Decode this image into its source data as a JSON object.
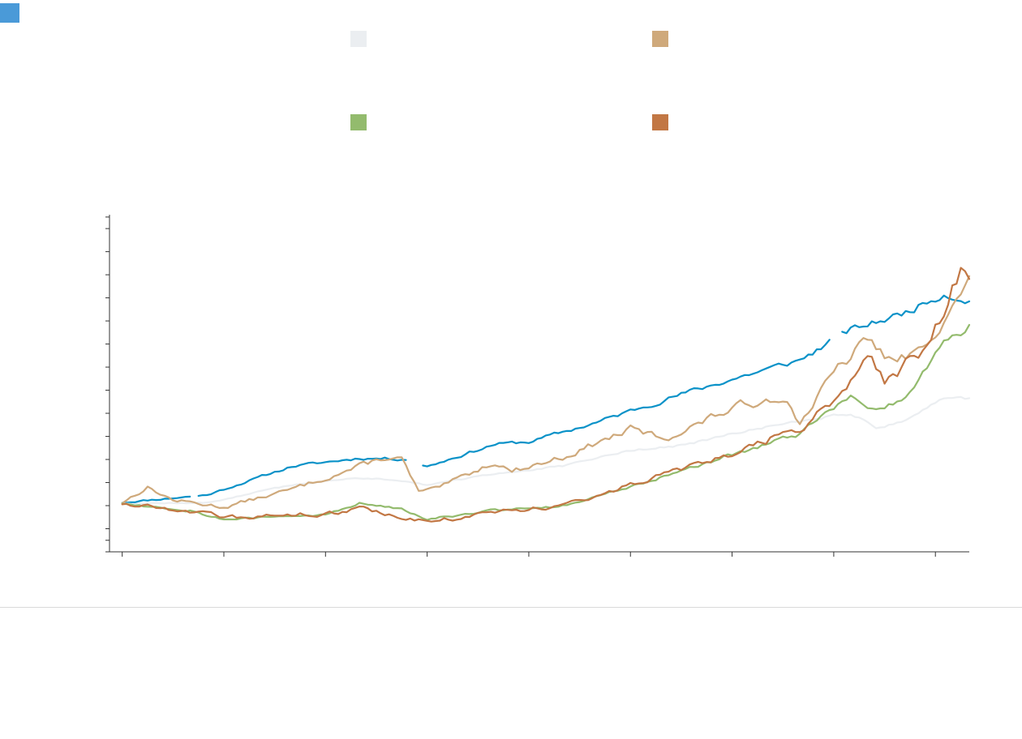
{
  "accent_tab_color": "#4a9ad8",
  "chart_data": {
    "type": "line",
    "title": "",
    "xlabel": "",
    "ylabel": "",
    "grid": false,
    "legend_placement": "top",
    "x_ticks": [
      0,
      12,
      24,
      36,
      48,
      60,
      72,
      84,
      96
    ],
    "x_range": [
      -1.5,
      100
    ],
    "ylim": [
      0,
      7.3
    ],
    "y_ticks": [
      0.0,
      0.25,
      0.5,
      1.0,
      1.5,
      2.0,
      2.5,
      3.0,
      3.5,
      4.0,
      4.5,
      5.0,
      5.5,
      6.0,
      6.5,
      7.0,
      7.25
    ],
    "num_points": 100,
    "series": [
      {
        "color": "#0a92c8",
        "width": 2.2,
        "anchors": [
          [
            0,
            1.07
          ],
          [
            10,
            1.23
          ],
          [
            20,
            1.85
          ],
          [
            28,
            2.03
          ],
          [
            34,
            2.01
          ],
          [
            36,
            1.85
          ],
          [
            44,
            2.33
          ],
          [
            48,
            2.38
          ],
          [
            56,
            2.8
          ],
          [
            64,
            3.3
          ],
          [
            72,
            3.74
          ],
          [
            80,
            4.15
          ],
          [
            86,
            4.8
          ],
          [
            92,
            5.15
          ],
          [
            97,
            5.6
          ],
          [
            100,
            5.45
          ]
        ],
        "noise": 0.03,
        "seed": 11,
        "gaps": [
          [
            8,
            9
          ],
          [
            33.5,
            35.2
          ],
          [
            83.5,
            84.8
          ]
        ]
      },
      {
        "color": "#ebeef1",
        "width": 2.2,
        "anchors": [
          [
            0,
            1.05
          ],
          [
            10,
            1.06
          ],
          [
            20,
            1.45
          ],
          [
            28,
            1.6
          ],
          [
            33,
            1.55
          ],
          [
            36,
            1.45
          ],
          [
            46,
            1.74
          ],
          [
            52,
            1.85
          ],
          [
            60,
            2.2
          ],
          [
            66,
            2.3
          ],
          [
            72,
            2.55
          ],
          [
            80,
            2.85
          ],
          [
            86,
            3.0
          ],
          [
            89,
            2.7
          ],
          [
            92,
            2.8
          ],
          [
            97,
            3.35
          ],
          [
            100,
            3.3
          ]
        ],
        "noise": 0.02,
        "seed": 12
      },
      {
        "color": "#cfa97b",
        "width": 2.2,
        "anchors": [
          [
            0,
            1.07
          ],
          [
            3,
            1.4
          ],
          [
            6,
            1.12
          ],
          [
            12,
            0.97
          ],
          [
            20,
            1.35
          ],
          [
            28,
            1.85
          ],
          [
            31,
            2.04
          ],
          [
            33,
            2.0
          ],
          [
            35,
            1.3
          ],
          [
            37,
            1.35
          ],
          [
            44,
            1.95
          ],
          [
            46,
            1.75
          ],
          [
            52,
            2.05
          ],
          [
            60,
            2.65
          ],
          [
            64,
            2.45
          ],
          [
            72,
            3.1
          ],
          [
            78,
            3.4
          ],
          [
            80,
            2.8
          ],
          [
            84,
            3.85
          ],
          [
            88,
            4.6
          ],
          [
            91,
            4.1
          ],
          [
            94,
            4.3
          ],
          [
            97,
            5.1
          ],
          [
            100,
            5.8
          ]
        ],
        "noise": 0.06,
        "seed": 13
      },
      {
        "color": "#93bb6d",
        "width": 2.2,
        "anchors": [
          [
            0,
            1.05
          ],
          [
            8,
            0.9
          ],
          [
            12,
            0.7
          ],
          [
            24,
            0.8
          ],
          [
            28,
            1.05
          ],
          [
            33,
            0.95
          ],
          [
            36,
            0.72
          ],
          [
            44,
            0.9
          ],
          [
            52,
            1.0
          ],
          [
            60,
            1.4
          ],
          [
            72,
            2.1
          ],
          [
            80,
            2.55
          ],
          [
            86,
            3.4
          ],
          [
            88,
            3.05
          ],
          [
            92,
            3.3
          ],
          [
            97,
            4.5
          ],
          [
            100,
            4.9
          ]
        ],
        "noise": 0.04,
        "seed": 14
      },
      {
        "color": "#c27744",
        "width": 2.2,
        "anchors": [
          [
            0,
            1.05
          ],
          [
            8,
            0.9
          ],
          [
            12,
            0.72
          ],
          [
            24,
            0.83
          ],
          [
            28,
            0.93
          ],
          [
            36,
            0.65
          ],
          [
            44,
            0.85
          ],
          [
            52,
            1.0
          ],
          [
            60,
            1.45
          ],
          [
            72,
            2.1
          ],
          [
            80,
            2.7
          ],
          [
            84,
            3.2
          ],
          [
            88,
            4.2
          ],
          [
            90,
            3.7
          ],
          [
            94,
            4.3
          ],
          [
            97,
            5.3
          ],
          [
            99,
            6.2
          ],
          [
            100,
            5.75
          ]
        ],
        "noise": 0.07,
        "seed": 15
      }
    ]
  },
  "legend": {
    "items": [
      {
        "color": "#ebeef1"
      },
      {
        "color": "#cfa97b"
      },
      {
        "color": "#93bb6d"
      },
      {
        "color": "#c27744"
      }
    ]
  }
}
